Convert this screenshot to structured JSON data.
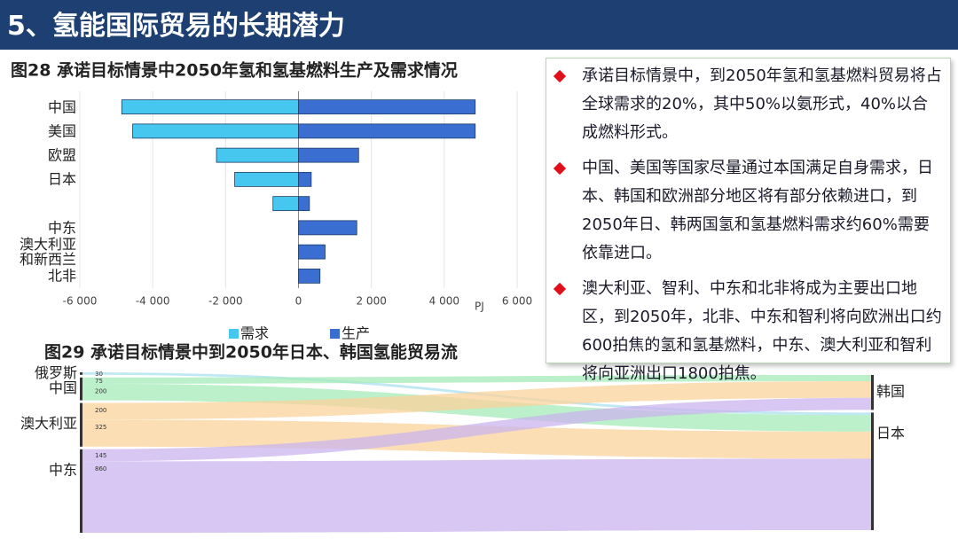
{
  "header": {
    "title": "5、氢能国际贸易的长期潜力"
  },
  "chart_data": [
    {
      "type": "bar",
      "orientation": "horizontal",
      "title": "图28 承诺目标情景中2050年氢和氢基燃料生产及需求情况",
      "categories": [
        "中国",
        "美国",
        "欧盟",
        "日本",
        null,
        "中东",
        "澳大利亚和新西兰",
        "北非"
      ],
      "series": [
        {
          "name": "需求",
          "color": "#45c7ef",
          "values": [
            -4850,
            -4550,
            -2250,
            -1750,
            -700,
            0,
            0,
            0
          ]
        },
        {
          "name": "生产",
          "color": "#3a6fd1",
          "values": [
            4850,
            4850,
            1650,
            350,
            300,
            1600,
            730,
            590
          ]
        }
      ],
      "xlabel": "PJ",
      "xlim": [
        -6000,
        6000
      ],
      "xticks": [
        {
          "value": -6000,
          "label": "-6 000"
        },
        {
          "value": -4000,
          "label": "-4 000"
        },
        {
          "value": -2000,
          "label": "-2 000"
        },
        0,
        {
          "value": 2000,
          "label": "2 000"
        },
        {
          "value": 4000,
          "label": "4 000"
        },
        {
          "value": 6000,
          "label": "6 000"
        }
      ],
      "grid": true,
      "legend": "bottom"
    },
    {
      "type": "sankey",
      "title": "图29 承诺目标情景中到2050年日本、韩国氢能贸易流",
      "nodes": [
        {
          "name": "俄罗斯",
          "color": "#a9e0f2"
        },
        {
          "name": "中国",
          "color": "#a6ebb9"
        },
        {
          "name": "澳大利亚",
          "color": "#fbd39b"
        },
        {
          "name": "中东",
          "color": "#c9b4ee"
        },
        {
          "name": "韩国",
          "color": "#d9c9f2"
        },
        {
          "name": "日本",
          "color": "#d9c9f2"
        }
      ],
      "links": [
        {
          "source": 0,
          "target": 5,
          "value": 30
        },
        {
          "source": 1,
          "target": 4,
          "value": 75
        },
        {
          "source": 1,
          "target": 5,
          "value": 200
        },
        {
          "source": 2,
          "target": 4,
          "value": 200
        },
        {
          "source": 2,
          "target": 5,
          "value": 325
        },
        {
          "source": 3,
          "target": 4,
          "value": 145
        },
        {
          "source": 3,
          "target": 5,
          "value": 860
        }
      ]
    }
  ],
  "bullets": [
    "承诺目标情景中，到2050年氢和氢基燃料贸易将占全球需求的20%，其中50%以氨形式，40%以合成燃料形式。",
    "中国、美国等国家尽量通过本国满足自身需求，日本、韩国和欧洲部分地区将有部分依赖进口，到2050年日、韩两国氢和氢基燃料需求约60%需要依靠进口。",
    "澳大利亚、智利、中东和北非将成为主要出口地区，到2050年，北非、中东和智利将向欧洲出口约600拍焦的氢和氢基燃料，中东、澳大利亚和智利将向亚洲出口1800拍焦。"
  ]
}
